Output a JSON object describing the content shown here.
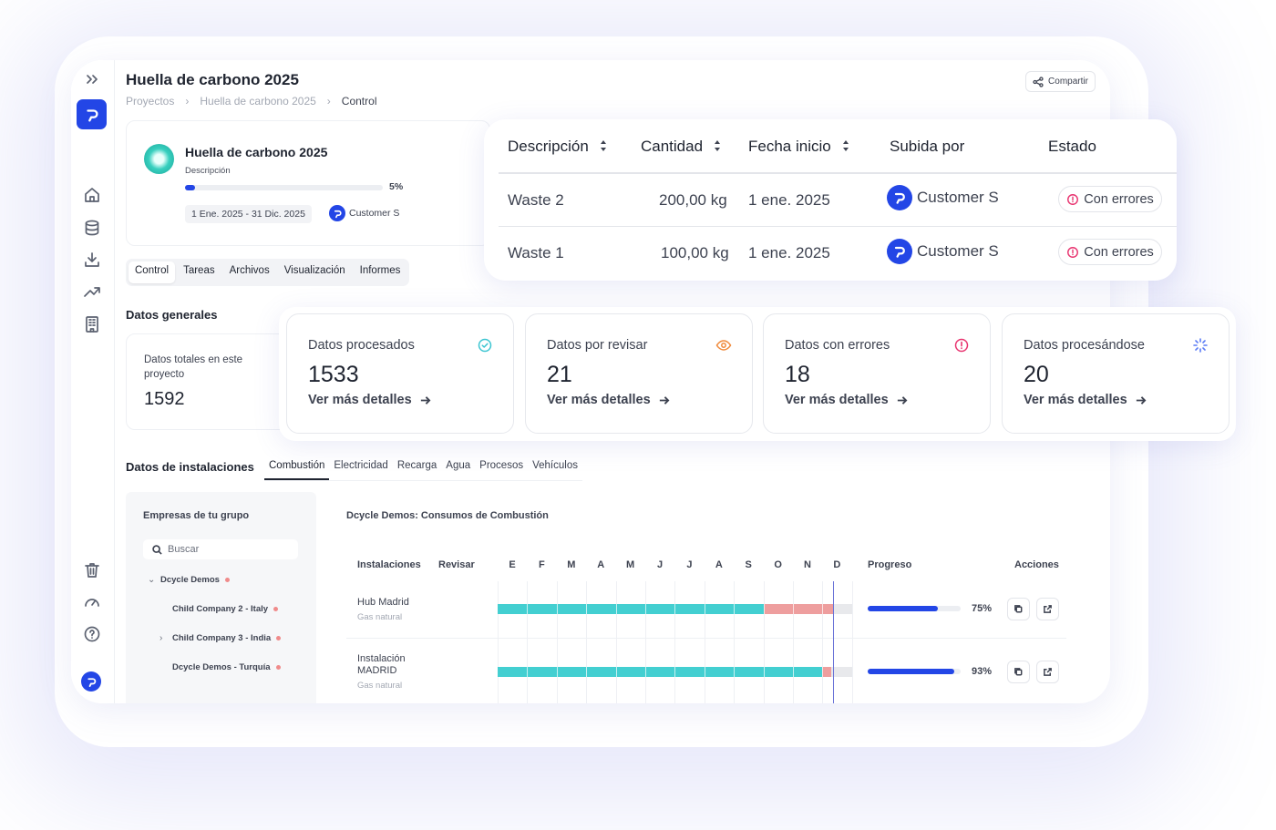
{
  "app": {
    "title": "Huella de carbono 2025",
    "share_label": "Compartir",
    "breadcrumb": [
      "Proyectos",
      "Huella de carbono 2025",
      "Control"
    ]
  },
  "project": {
    "name": "Huella de carbono 2025",
    "description_label": "Descripción",
    "progress_pct": 5,
    "progress_label": "5%",
    "date_range": "1 Ene. 2025 - 31 Dic. 2025",
    "owner": "Customer S"
  },
  "tabs": [
    "Control",
    "Tareas",
    "Archivos",
    "Visualización",
    "Informes"
  ],
  "general": {
    "title": "Datos generales",
    "total_label": "Datos totales en este proyecto",
    "total_value": "1592"
  },
  "uploads_table": {
    "headers": [
      "Descripción",
      "Cantidad",
      "Fecha inicio",
      "Subida por",
      "Estado"
    ],
    "rows": [
      {
        "descripcion": "Waste 2",
        "cantidad": "200,00 kg",
        "fecha": "1 ene. 2025",
        "subida_por": "Customer S",
        "estado": "Con errores"
      },
      {
        "descripcion": "Waste 1",
        "cantidad": "100,00 kg",
        "fecha": "1 ene. 2025",
        "subida_por": "Customer S",
        "estado": "Con errores"
      }
    ]
  },
  "stats": [
    {
      "label": "Datos procesados",
      "value": "1533",
      "link": "Ver más detalles",
      "icon": "check-circle-icon",
      "color": "#3cc5d1"
    },
    {
      "label": "Datos por revisar",
      "value": "21",
      "link": "Ver más detalles",
      "icon": "eye-icon",
      "color": "#f08a3c"
    },
    {
      "label": "Datos con errores",
      "value": "18",
      "link": "Ver más detalles",
      "icon": "alert-circle-icon",
      "color": "#e8336f"
    },
    {
      "label": "Datos procesándose",
      "value": "20",
      "link": "Ver más detalles",
      "icon": "loader-icon",
      "color": "#5b7cf5"
    }
  ],
  "installations": {
    "title": "Datos de instalaciones",
    "tabs": [
      "Combustión",
      "Electricidad",
      "Recarga",
      "Agua",
      "Procesos",
      "Vehículos"
    ],
    "group_title": "Empresas de tu grupo",
    "search_placeholder": "Buscar",
    "tree": [
      {
        "label": "Dcycle Demos",
        "chevron": "⌄"
      },
      {
        "label": "Child Company 2 - Italy",
        "chevron": ""
      },
      {
        "label": "Child Company 3 - India",
        "chevron": "›"
      },
      {
        "label": "Dcycle Demos - Turquía",
        "chevron": ""
      }
    ],
    "chart_title": "Dcycle Demos: Consumos de Combustión",
    "col_instalaciones": "Instalaciones",
    "col_revisar": "Revisar",
    "months": [
      "E",
      "F",
      "M",
      "A",
      "M",
      "J",
      "J",
      "A",
      "S",
      "O",
      "N",
      "D"
    ],
    "col_progreso": "Progreso",
    "col_acciones": "Acciones",
    "rows": [
      {
        "name": "Hub Madrid",
        "type": "Gas natural",
        "ok_months": 9,
        "error_months": 2.4,
        "progress": 75,
        "progress_label": "75%"
      },
      {
        "name": "Instalación MADRID",
        "type": "Gas natural",
        "ok_months": 11,
        "error_months": 0.3,
        "progress": 93,
        "progress_label": "93%"
      }
    ]
  },
  "colors": {
    "brand": "#2346e6",
    "gantt_ok": "#43cfd1",
    "gantt_error": "#ee9e9e"
  }
}
